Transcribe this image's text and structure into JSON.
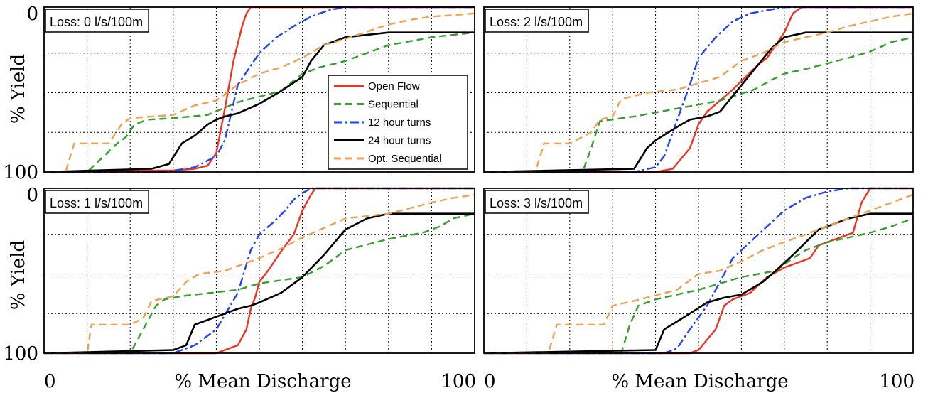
{
  "figure": {
    "legend_location": "Loss: 0 l/s/100m panel, center-right",
    "x_axis_caption": "% Mean Discharge",
    "y_axis_caption": "% Yield"
  },
  "chart_data": [
    {
      "type": "line",
      "title": "Loss: 0 l/s/100m",
      "xlabel": "",
      "ylabel": "% Yield",
      "xlim": [
        0,
        100
      ],
      "ylim": [
        0,
        104
      ],
      "grid": true,
      "yticks": [
        "0",
        "100"
      ],
      "xticks": [],
      "series": [
        {
          "name": "Open Flow",
          "color": "#ee3322",
          "dash": "solid",
          "x": [
            0,
            30,
            35,
            38,
            40,
            42,
            44,
            46,
            47,
            48,
            50,
            100
          ],
          "y": [
            0,
            1,
            2,
            4,
            12,
            40,
            70,
            92,
            100,
            104,
            104,
            104
          ]
        },
        {
          "name": "Sequential",
          "color": "#33a02c",
          "dash": "dashed",
          "x": [
            0,
            10,
            17,
            19,
            21,
            24,
            30,
            38,
            45,
            55,
            60,
            64,
            70,
            80,
            90,
            100
          ],
          "y": [
            0,
            0,
            18,
            22,
            30,
            33,
            34,
            36,
            44,
            51,
            62,
            66,
            70,
            80,
            85,
            88
          ]
        },
        {
          "name": "12 hour turns",
          "color": "#2244ee",
          "dash": "dashdot",
          "x": [
            0,
            28,
            35,
            40,
            42,
            45,
            50,
            54,
            58,
            62,
            66,
            70,
            100
          ],
          "y": [
            0,
            0,
            3,
            10,
            20,
            55,
            75,
            85,
            92,
            98,
            102,
            104,
            104
          ]
        },
        {
          "name": "24 hour turns",
          "color": "#000000",
          "dash": "solid",
          "x": [
            0,
            25,
            29,
            32,
            35,
            38,
            40,
            42,
            45,
            50,
            55,
            60,
            62,
            65,
            70,
            80,
            100
          ],
          "y": [
            0,
            2,
            5,
            18,
            23,
            30,
            33,
            35,
            37,
            43,
            51,
            60,
            70,
            80,
            85,
            88,
            88
          ]
        },
        {
          "name": "Opt. Sequential",
          "color": "#f0a050",
          "dash": "dashed",
          "x": [
            0,
            5,
            7,
            15,
            18,
            20,
            30,
            35,
            40,
            45,
            50,
            55,
            60,
            65,
            70,
            80,
            85,
            90,
            100
          ],
          "y": [
            0,
            0,
            18,
            18,
            30,
            34,
            36,
            42,
            45,
            55,
            62,
            66,
            72,
            80,
            84,
            93,
            96,
            98,
            100
          ]
        }
      ]
    },
    {
      "type": "line",
      "title": "Loss: 2 l/s/100m",
      "xlabel": "",
      "ylabel": "",
      "xlim": [
        0,
        100
      ],
      "ylim": [
        0,
        104
      ],
      "grid": true,
      "yticks": [],
      "xticks": [],
      "series": [
        {
          "name": "Open Flow",
          "color": "#ee3322",
          "dash": "solid",
          "x": [
            0,
            40,
            44,
            48,
            50,
            52,
            55,
            58,
            61,
            64,
            66,
            68,
            70,
            72,
            74,
            76,
            100
          ],
          "y": [
            0,
            0,
            2,
            15,
            30,
            38,
            45,
            52,
            60,
            68,
            72,
            80,
            88,
            100,
            104,
            104,
            104
          ]
        },
        {
          "name": "Sequential",
          "color": "#33a02c",
          "dash": "dashed",
          "x": [
            0,
            23,
            25,
            27,
            35,
            45,
            55,
            63,
            67,
            70,
            75,
            85,
            90,
            95,
            100
          ],
          "y": [
            0,
            0,
            15,
            32,
            35,
            40,
            45,
            52,
            58,
            62,
            65,
            72,
            76,
            82,
            85
          ]
        },
        {
          "name": "12 hour turns",
          "color": "#2244ee",
          "dash": "dashdot",
          "x": [
            0,
            35,
            40,
            42,
            44,
            46,
            48,
            50,
            54,
            58,
            62,
            66,
            70,
            72,
            100
          ],
          "y": [
            0,
            0,
            3,
            10,
            25,
            40,
            55,
            72,
            85,
            95,
            100,
            102,
            104,
            104,
            104
          ]
        },
        {
          "name": "24 hour turns",
          "color": "#000000",
          "dash": "solid",
          "x": [
            0,
            35,
            38,
            40,
            43,
            46,
            48,
            52,
            55,
            58,
            61,
            64,
            67,
            70,
            75,
            80,
            100
          ],
          "y": [
            0,
            2,
            15,
            20,
            25,
            30,
            33,
            35,
            38,
            48,
            58,
            68,
            78,
            85,
            88,
            88,
            88
          ]
        },
        {
          "name": "Opt. Sequential",
          "color": "#f0a050",
          "dash": "dashed",
          "x": [
            0,
            12,
            14,
            20,
            25,
            27,
            30,
            32,
            38,
            45,
            55,
            60,
            65,
            70,
            75,
            80,
            85,
            90,
            95,
            100
          ],
          "y": [
            0,
            0,
            18,
            18,
            25,
            33,
            35,
            46,
            50,
            52,
            60,
            70,
            75,
            82,
            85,
            88,
            92,
            95,
            98,
            100
          ]
        }
      ]
    },
    {
      "type": "line",
      "title": "Loss: 1 l/s/100m",
      "xlabel": "% Mean Discharge",
      "ylabel": "% Yield",
      "xlim": [
        0,
        100
      ],
      "ylim": [
        0,
        104
      ],
      "grid": true,
      "yticks": [
        "0",
        "100"
      ],
      "xticks": [
        "0",
        "100"
      ],
      "series": [
        {
          "name": "Open Flow",
          "color": "#ee3322",
          "dash": "solid",
          "x": [
            0,
            40,
            45,
            47,
            48,
            49,
            50,
            52,
            55,
            58,
            60,
            62,
            63,
            65,
            100
          ],
          "y": [
            0,
            0,
            5,
            15,
            28,
            35,
            45,
            52,
            64,
            75,
            90,
            100,
            104,
            104,
            104
          ]
        },
        {
          "name": "Sequential",
          "color": "#33a02c",
          "dash": "dashed",
          "x": [
            0,
            20,
            26,
            28,
            32,
            45,
            50,
            60,
            65,
            70,
            80,
            88,
            92,
            95,
            100
          ],
          "y": [
            0,
            0,
            30,
            34,
            36,
            40,
            44,
            48,
            55,
            65,
            72,
            76,
            80,
            85,
            88
          ]
        },
        {
          "name": "12 hour turns",
          "color": "#2244ee",
          "dash": "dashdot",
          "x": [
            0,
            30,
            35,
            40,
            45,
            48,
            50,
            53,
            56,
            58,
            60,
            62,
            100
          ],
          "y": [
            0,
            0,
            5,
            15,
            38,
            65,
            75,
            82,
            90,
            97,
            101,
            104,
            104
          ]
        },
        {
          "name": "24 hour turns",
          "color": "#000000",
          "dash": "solid",
          "x": [
            0,
            30,
            33,
            35,
            37,
            40,
            45,
            48,
            50,
            55,
            60,
            65,
            70,
            75,
            80,
            100
          ],
          "y": [
            0,
            2,
            5,
            18,
            20,
            23,
            28,
            30,
            32,
            38,
            48,
            62,
            78,
            85,
            88,
            88
          ]
        },
        {
          "name": "Opt. Sequential",
          "color": "#f0a050",
          "dash": "dashed",
          "x": [
            0,
            10,
            11,
            20,
            23,
            25,
            30,
            33,
            36,
            42,
            50,
            55,
            60,
            70,
            80,
            90,
            95,
            100
          ],
          "y": [
            0,
            0,
            18,
            18,
            22,
            33,
            36,
            45,
            50,
            52,
            60,
            66,
            73,
            85,
            88,
            95,
            98,
            100
          ]
        }
      ]
    },
    {
      "type": "line",
      "title": "Loss: 3 l/s/100m",
      "xlabel": "% Mean Discharge",
      "ylabel": "",
      "xlim": [
        0,
        100
      ],
      "ylim": [
        0,
        104
      ],
      "grid": true,
      "yticks": [],
      "xticks": [
        "0",
        "100"
      ],
      "series": [
        {
          "name": "Open Flow",
          "color": "#ee3322",
          "dash": "solid",
          "x": [
            0,
            48,
            50,
            54,
            56,
            58,
            62,
            66,
            70,
            76,
            78,
            82,
            86,
            88,
            90,
            92,
            100
          ],
          "y": [
            0,
            0,
            2,
            15,
            30,
            34,
            38,
            48,
            54,
            60,
            68,
            72,
            76,
            95,
            104,
            104,
            104
          ]
        },
        {
          "name": "Sequential",
          "color": "#33a02c",
          "dash": "dashed",
          "x": [
            0,
            32,
            34,
            36,
            40,
            50,
            60,
            68,
            72,
            75,
            80,
            90,
            95,
            100
          ],
          "y": [
            0,
            0,
            18,
            30,
            34,
            40,
            48,
            52,
            60,
            65,
            70,
            76,
            80,
            85
          ]
        },
        {
          "name": "12 hour turns",
          "color": "#2244ee",
          "dash": "dashdot",
          "x": [
            0,
            42,
            45,
            48,
            52,
            55,
            58,
            62,
            66,
            70,
            75,
            80,
            85,
            100
          ],
          "y": [
            0,
            0,
            3,
            15,
            30,
            45,
            60,
            70,
            80,
            90,
            98,
            102,
            104,
            104
          ]
        },
        {
          "name": "24 hour turns",
          "color": "#000000",
          "dash": "solid",
          "x": [
            0,
            40,
            42,
            45,
            48,
            52,
            56,
            60,
            65,
            68,
            72,
            78,
            85,
            90,
            100
          ],
          "y": [
            0,
            2,
            15,
            20,
            25,
            32,
            35,
            37,
            45,
            52,
            62,
            78,
            85,
            88,
            88
          ]
        },
        {
          "name": "Opt. Sequential",
          "color": "#f0a050",
          "dash": "dashed",
          "x": [
            0,
            15,
            17,
            28,
            30,
            35,
            45,
            50,
            55,
            60,
            65,
            70,
            75,
            80,
            85,
            90,
            95,
            100
          ],
          "y": [
            0,
            0,
            18,
            18,
            30,
            33,
            40,
            50,
            52,
            58,
            65,
            70,
            75,
            80,
            85,
            90,
            95,
            100
          ]
        }
      ]
    }
  ]
}
